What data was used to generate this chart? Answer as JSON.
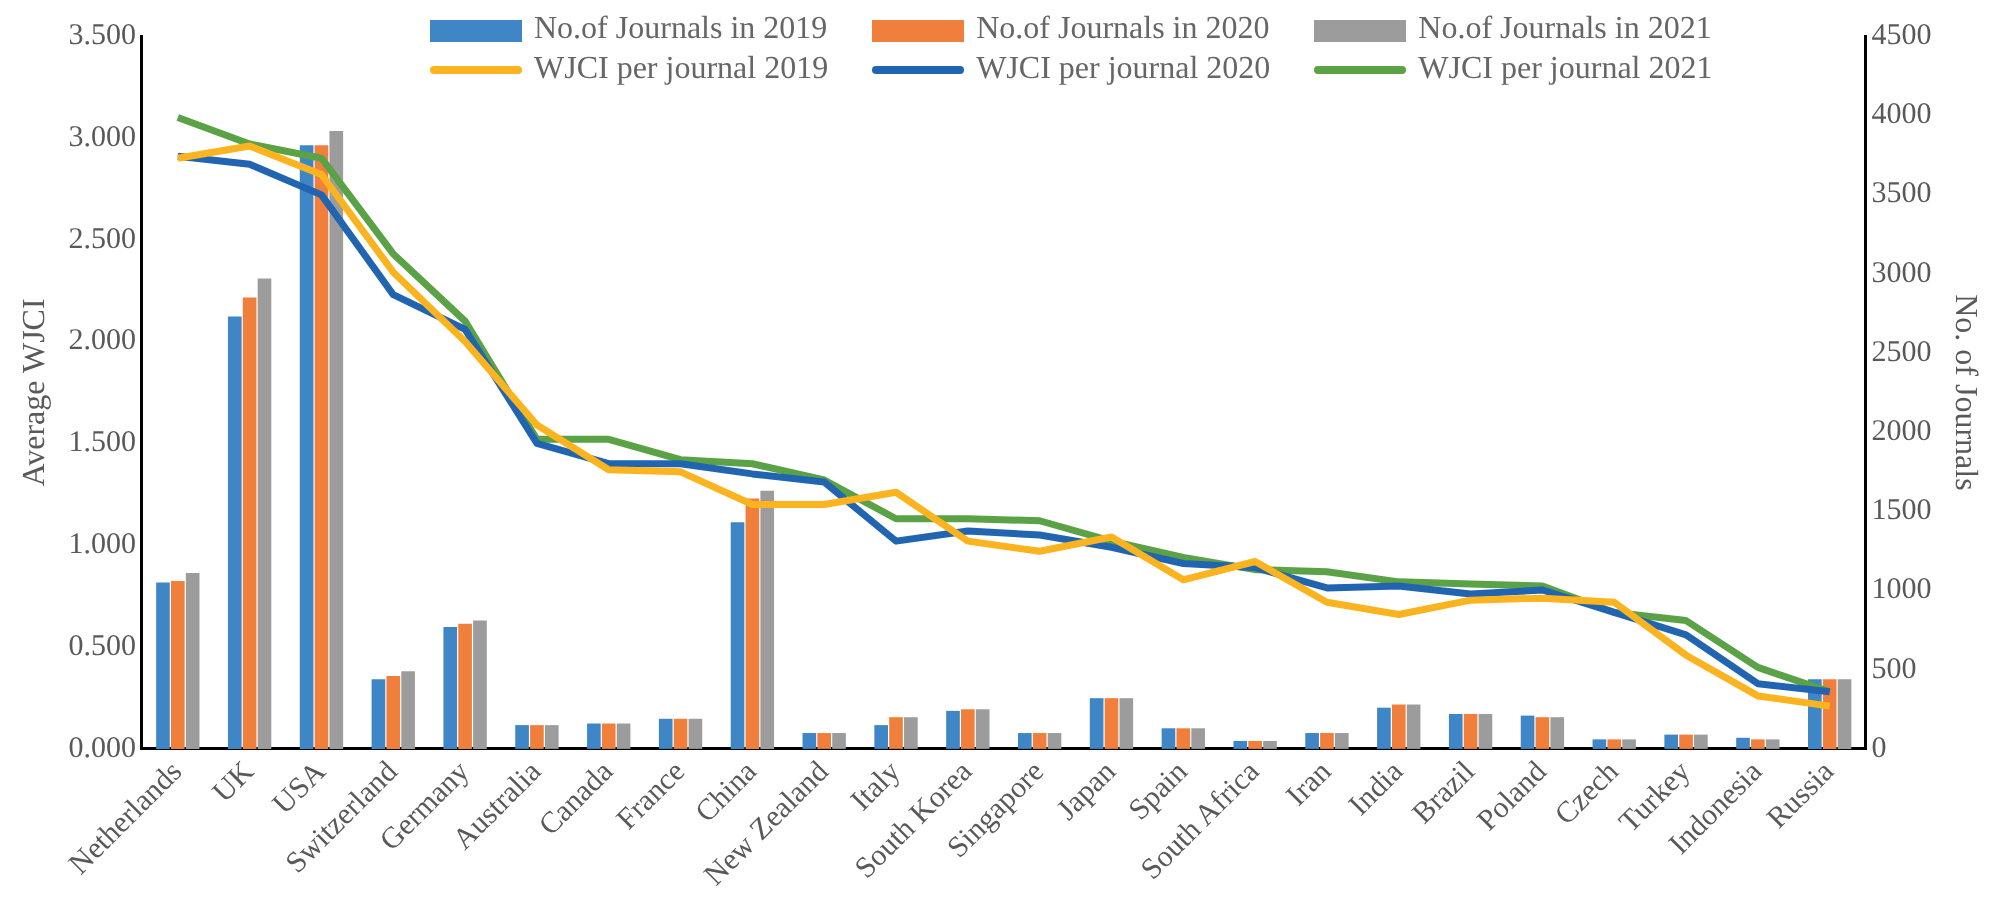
{
  "chart_data": {
    "type": "bar",
    "categories": [
      "Netherlands",
      "UK",
      "USA",
      "Switzerland",
      "Germany",
      "Australia",
      "Canada",
      "France",
      "China",
      "New Zealand",
      "Italy",
      "South Korea",
      "Singapore",
      "Japan",
      "Spain",
      "South Africa",
      "Iran",
      "India",
      "Brazil",
      "Poland",
      "Czech",
      "Turkey",
      "Indonesia",
      "Russia"
    ],
    "series": [
      {
        "name": "No.of Journals in 2019",
        "axis": "y2",
        "color": "#3e86c6",
        "values": [
          1050,
          2730,
          3810,
          440,
          770,
          150,
          160,
          190,
          1430,
          100,
          150,
          240,
          100,
          320,
          130,
          50,
          100,
          260,
          220,
          210,
          60,
          90,
          70,
          440
        ]
      },
      {
        "name": "No.of Journals in 2020",
        "axis": "y2",
        "color": "#f07f3c",
        "values": [
          1060,
          2850,
          3810,
          460,
          790,
          150,
          160,
          190,
          1580,
          100,
          200,
          250,
          100,
          320,
          130,
          50,
          100,
          280,
          220,
          200,
          60,
          90,
          60,
          440
        ]
      },
      {
        "name": "No.of Journals in 2021",
        "axis": "y2",
        "color": "#9c9c9c",
        "values": [
          1110,
          2970,
          3900,
          490,
          810,
          150,
          160,
          190,
          1630,
          100,
          200,
          250,
          100,
          320,
          130,
          50,
          100,
          280,
          220,
          200,
          60,
          90,
          60,
          440
        ]
      },
      {
        "name": "WJCI per journal 2019",
        "type": "line",
        "color": "#fbb41f",
        "values": [
          2.9,
          2.96,
          2.82,
          2.34,
          2.0,
          1.59,
          1.37,
          1.36,
          1.2,
          1.2,
          1.26,
          1.02,
          0.97,
          1.04,
          0.83,
          0.92,
          0.72,
          0.66,
          0.73,
          0.74,
          0.72,
          0.46,
          0.26,
          0.21
        ]
      },
      {
        "name": "WJCI per journal 2020",
        "type": "line",
        "color": "#2165b1",
        "values": [
          2.91,
          2.87,
          2.72,
          2.23,
          2.06,
          1.5,
          1.4,
          1.4,
          1.35,
          1.31,
          1.02,
          1.07,
          1.05,
          0.99,
          0.91,
          0.89,
          0.79,
          0.8,
          0.76,
          0.78,
          0.67,
          0.56,
          0.32,
          0.28
        ]
      },
      {
        "name": "WJCI per journal 2021",
        "type": "line",
        "color": "#5ba145",
        "values": [
          3.1,
          2.97,
          2.9,
          2.43,
          2.1,
          1.52,
          1.52,
          1.42,
          1.4,
          1.32,
          1.13,
          1.13,
          1.12,
          1.02,
          0.94,
          0.88,
          0.87,
          0.82,
          0.81,
          0.8,
          0.67,
          0.63,
          0.4,
          0.28
        ]
      }
    ],
    "ylabel": "Average WJCI",
    "y2label": "No. of Journals",
    "ylim": [
      0,
      3.5
    ],
    "yticks": [
      {
        "value": 0,
        "label": "0.000"
      },
      {
        "value": 0.5,
        "label": "0.500"
      },
      {
        "value": 1,
        "label": "1.000"
      },
      {
        "value": 1.5,
        "label": "1.500"
      },
      {
        "value": 2,
        "label": "2.000"
      },
      {
        "value": 2.5,
        "label": "2.500"
      },
      {
        "value": 3,
        "label": "3.000"
      },
      {
        "value": 3.5,
        "label": "3.500"
      }
    ],
    "y2lim": [
      0,
      4500
    ],
    "y2ticks": [
      0,
      500,
      1000,
      1500,
      2000,
      2500,
      3000,
      3500,
      4000,
      4500
    ],
    "grid": false,
    "legend": "top",
    "marker": "none"
  }
}
